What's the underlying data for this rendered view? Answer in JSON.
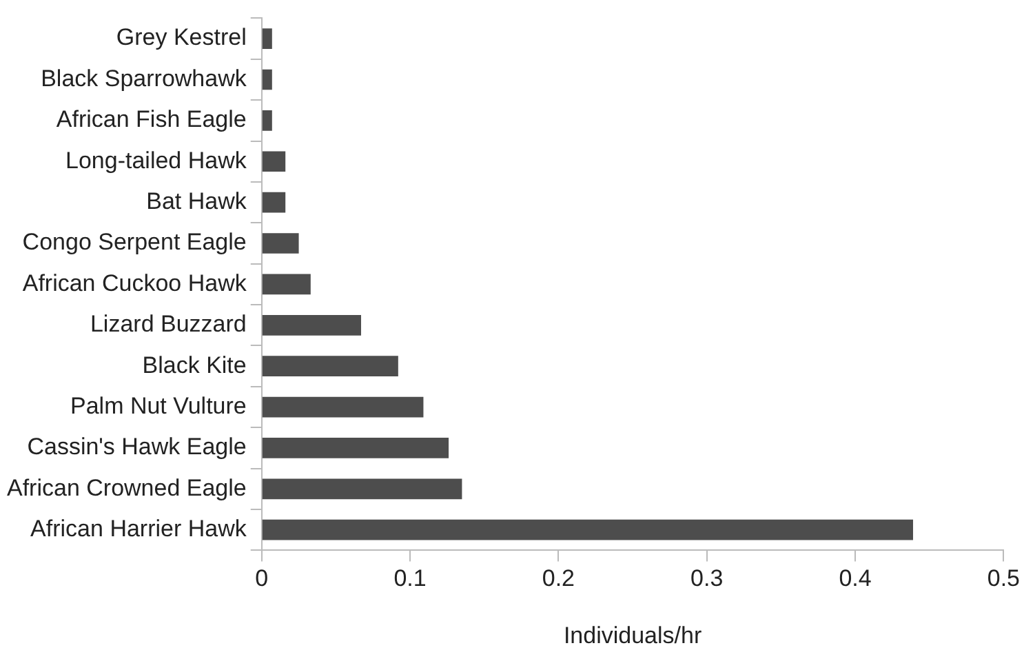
{
  "chart_data": {
    "type": "bar",
    "orientation": "horizontal",
    "xlabel": "Individuals/hr",
    "categories": [
      "Grey Kestrel",
      "Black Sparrowhawk",
      "African Fish Eagle",
      "Long-tailed Hawk",
      "Bat Hawk",
      "Congo Serpent Eagle",
      "African Cuckoo Hawk",
      "Lizard Buzzard",
      "Black Kite",
      "Palm Nut Vulture",
      "Cassin's Hawk Eagle",
      "African Crowned Eagle",
      "African Harrier Hawk"
    ],
    "values": [
      0.007,
      0.007,
      0.007,
      0.016,
      0.016,
      0.025,
      0.033,
      0.067,
      0.092,
      0.109,
      0.126,
      0.135,
      0.439
    ],
    "color": "#4d4d4d",
    "xlim": [
      0,
      0.5
    ],
    "xticks": [
      0,
      0.1,
      0.2,
      0.3,
      0.4,
      0.5
    ],
    "grid": false,
    "legend": false
  }
}
